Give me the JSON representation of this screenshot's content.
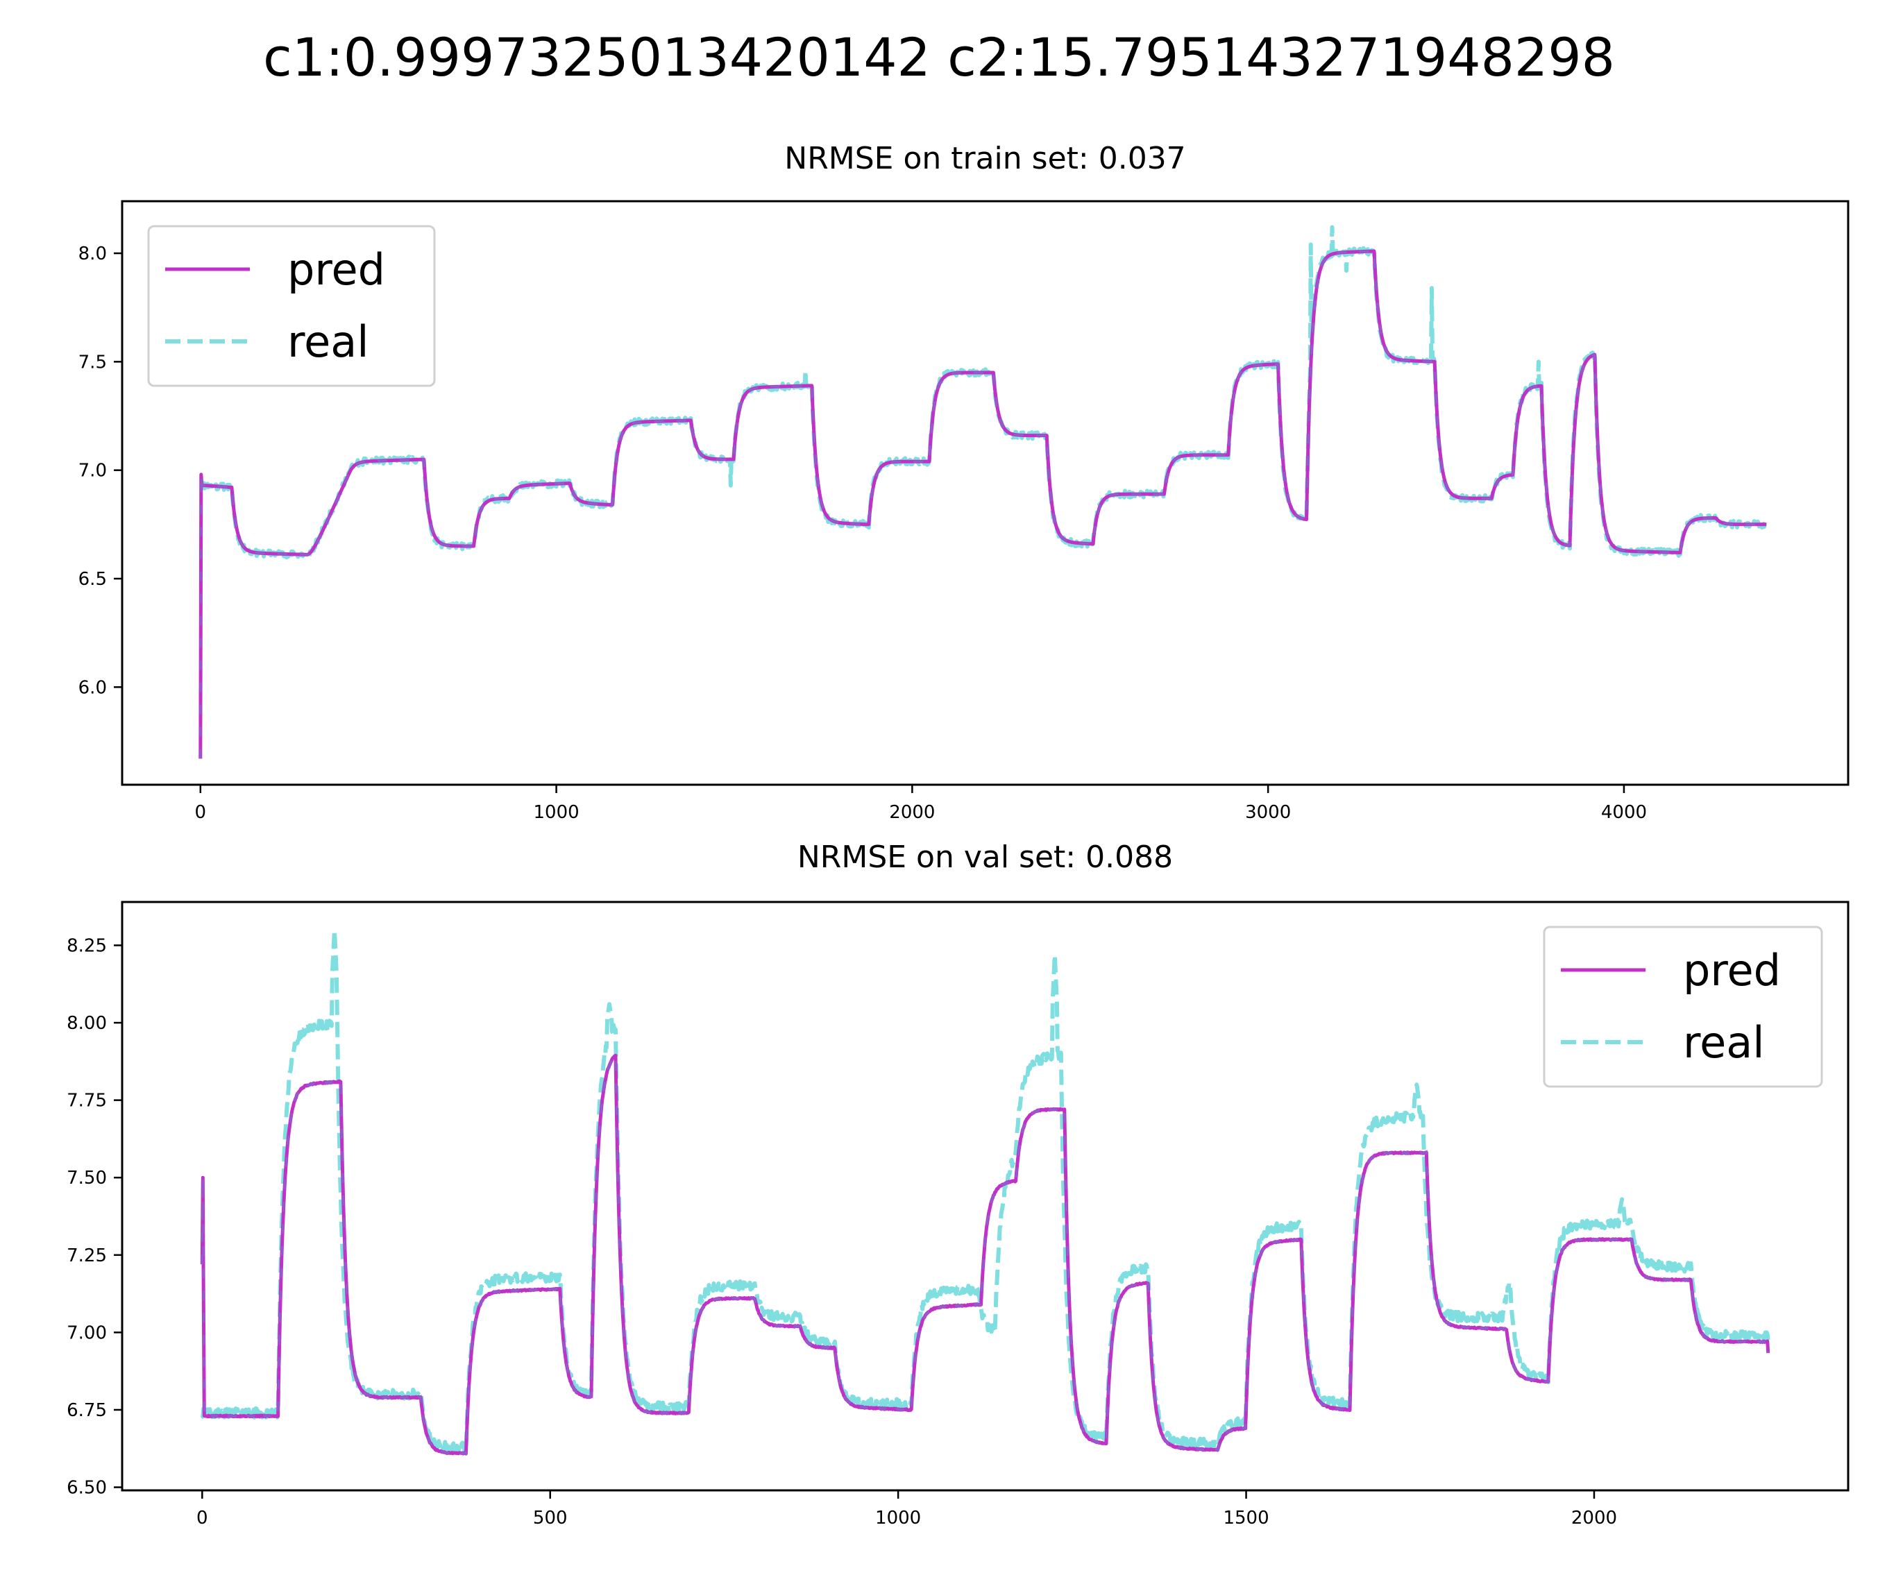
{
  "figure": {
    "suptitle": "c1:0.9997325013420142 c2:15.795143271948298",
    "colors": {
      "pred": "#c031c8",
      "real": "#7fdedf",
      "overlap": "#6a7fcf"
    }
  },
  "chart_data": [
    {
      "type": "line",
      "title": "NRMSE on train set: 0.037",
      "xlabel": "",
      "ylabel": "",
      "xlim": [
        -220,
        4630
      ],
      "ylim": [
        5.55,
        8.24
      ],
      "xticks": [
        0,
        1000,
        2000,
        3000,
        4000
      ],
      "yticks": [
        6.0,
        6.5,
        7.0,
        7.5,
        8.0
      ],
      "ytick_labels": [
        "6.0",
        "6.5",
        "7.0",
        "7.5",
        "8.0"
      ],
      "legend": {
        "position": "upper-left",
        "entries": [
          "pred",
          "real"
        ]
      },
      "grid": false,
      "steps": [
        [
          0,
          6.93
        ],
        [
          80,
          6.92
        ],
        [
          90,
          6.62
        ],
        [
          300,
          6.61
        ],
        [
          420,
          7.04
        ],
        [
          620,
          7.05
        ],
        [
          630,
          6.65
        ],
        [
          760,
          6.65
        ],
        [
          770,
          6.87
        ],
        [
          860,
          6.87
        ],
        [
          870,
          6.93
        ],
        [
          1030,
          6.94
        ],
        [
          1040,
          6.85
        ],
        [
          1140,
          6.84
        ],
        [
          1160,
          7.22
        ],
        [
          1370,
          7.23
        ],
        [
          1380,
          7.05
        ],
        [
          1480,
          7.05
        ],
        [
          1500,
          7.38
        ],
        [
          1710,
          7.39
        ],
        [
          1720,
          6.76
        ],
        [
          1860,
          6.75
        ],
        [
          1880,
          7.04
        ],
        [
          2030,
          7.04
        ],
        [
          2050,
          7.45
        ],
        [
          2210,
          7.45
        ],
        [
          2230,
          7.16
        ],
        [
          2370,
          7.16
        ],
        [
          2380,
          6.67
        ],
        [
          2490,
          6.66
        ],
        [
          2510,
          6.89
        ],
        [
          2690,
          6.89
        ],
        [
          2710,
          7.07
        ],
        [
          2870,
          7.07
        ],
        [
          2890,
          7.48
        ],
        [
          3020,
          7.49
        ],
        [
          3030,
          6.78
        ],
        [
          3090,
          6.77
        ],
        [
          3110,
          8.0
        ],
        [
          3290,
          8.01
        ],
        [
          3300,
          7.51
        ],
        [
          3460,
          7.5
        ],
        [
          3470,
          6.87
        ],
        [
          3610,
          6.87
        ],
        [
          3630,
          6.98
        ],
        [
          3670,
          6.98
        ],
        [
          3690,
          7.39
        ],
        [
          3760,
          7.39
        ],
        [
          3770,
          6.65
        ],
        [
          3830,
          6.65
        ],
        [
          3850,
          7.53
        ],
        [
          3910,
          7.54
        ],
        [
          3920,
          6.63
        ],
        [
          4140,
          6.62
        ],
        [
          4160,
          6.78
        ],
        [
          4240,
          6.78
        ],
        [
          4260,
          6.75
        ],
        [
          4400,
          6.75
        ]
      ],
      "series": [
        {
          "name": "pred",
          "style": "solid"
        },
        {
          "name": "real",
          "style": "dashed"
        }
      ]
    },
    {
      "type": "line",
      "title": "NRMSE on val set: 0.088",
      "xlabel": "",
      "ylabel": "",
      "xlim": [
        -115,
        2365
      ],
      "ylim": [
        6.49,
        8.39
      ],
      "xticks": [
        0,
        500,
        1000,
        1500,
        2000
      ],
      "yticks": [
        6.5,
        6.75,
        7.0,
        7.25,
        7.5,
        7.75,
        8.0,
        8.25
      ],
      "ytick_labels": [
        "6.50",
        "6.75",
        "7.00",
        "7.25",
        "7.50",
        "7.75",
        "8.00",
        "8.25"
      ],
      "legend": {
        "position": "upper-right",
        "entries": [
          "pred",
          "real"
        ]
      },
      "grid": false,
      "pred_steps": [
        [
          0,
          6.73
        ],
        [
          105,
          6.73
        ],
        [
          110,
          7.8
        ],
        [
          195,
          7.81
        ],
        [
          200,
          6.79
        ],
        [
          310,
          6.79
        ],
        [
          315,
          6.61
        ],
        [
          370,
          6.61
        ],
        [
          380,
          7.13
        ],
        [
          505,
          7.14
        ],
        [
          515,
          6.79
        ],
        [
          555,
          6.79
        ],
        [
          560,
          7.9
        ],
        [
          590,
          7.91
        ],
        [
          595,
          6.74
        ],
        [
          690,
          6.74
        ],
        [
          700,
          7.11
        ],
        [
          790,
          7.11
        ],
        [
          795,
          7.02
        ],
        [
          855,
          7.02
        ],
        [
          860,
          6.95
        ],
        [
          905,
          6.95
        ],
        [
          910,
          6.76
        ],
        [
          1010,
          6.75
        ],
        [
          1020,
          7.08
        ],
        [
          1110,
          7.09
        ],
        [
          1120,
          7.48
        ],
        [
          1160,
          7.49
        ],
        [
          1170,
          7.72
        ],
        [
          1230,
          7.72
        ],
        [
          1240,
          6.65
        ],
        [
          1290,
          6.64
        ],
        [
          1300,
          7.15
        ],
        [
          1350,
          7.16
        ],
        [
          1360,
          6.63
        ],
        [
          1450,
          6.62
        ],
        [
          1460,
          6.69
        ],
        [
          1490,
          6.69
        ],
        [
          1500,
          7.29
        ],
        [
          1575,
          7.3
        ],
        [
          1580,
          6.76
        ],
        [
          1640,
          6.75
        ],
        [
          1650,
          7.58
        ],
        [
          1750,
          7.58
        ],
        [
          1760,
          7.02
        ],
        [
          1870,
          7.01
        ],
        [
          1875,
          6.85
        ],
        [
          1930,
          6.84
        ],
        [
          1935,
          7.3
        ],
        [
          2040,
          7.3
        ],
        [
          2055,
          7.17
        ],
        [
          2130,
          7.17
        ],
        [
          2140,
          6.97
        ],
        [
          2230,
          6.97
        ],
        [
          2250,
          6.67
        ]
      ],
      "real_steps": [
        [
          0,
          6.74
        ],
        [
          105,
          6.74
        ],
        [
          110,
          7.98
        ],
        [
          185,
          8.0
        ],
        [
          195,
          6.8
        ],
        [
          310,
          6.8
        ],
        [
          315,
          6.63
        ],
        [
          370,
          6.63
        ],
        [
          380,
          7.17
        ],
        [
          505,
          7.18
        ],
        [
          515,
          6.8
        ],
        [
          555,
          6.8
        ],
        [
          560,
          8.0
        ],
        [
          590,
          8.0
        ],
        [
          595,
          6.76
        ],
        [
          690,
          6.76
        ],
        [
          700,
          7.15
        ],
        [
          790,
          7.15
        ],
        [
          795,
          7.05
        ],
        [
          855,
          7.05
        ],
        [
          860,
          6.97
        ],
        [
          905,
          6.96
        ],
        [
          910,
          6.77
        ],
        [
          1010,
          6.77
        ],
        [
          1020,
          7.13
        ],
        [
          1110,
          7.14
        ],
        [
          1115,
          7.0
        ],
        [
          1140,
          7.55
        ],
        [
          1160,
          7.6
        ],
        [
          1170,
          7.87
        ],
        [
          1225,
          7.9
        ],
        [
          1235,
          6.68
        ],
        [
          1290,
          6.66
        ],
        [
          1300,
          7.2
        ],
        [
          1350,
          7.21
        ],
        [
          1360,
          6.65
        ],
        [
          1450,
          6.64
        ],
        [
          1460,
          6.71
        ],
        [
          1490,
          6.71
        ],
        [
          1500,
          7.33
        ],
        [
          1575,
          7.35
        ],
        [
          1580,
          6.78
        ],
        [
          1640,
          6.77
        ],
        [
          1650,
          7.68
        ],
        [
          1740,
          7.7
        ],
        [
          1755,
          7.05
        ],
        [
          1860,
          7.05
        ],
        [
          1870,
          7.2
        ],
        [
          1880,
          6.86
        ],
        [
          1930,
          6.85
        ],
        [
          1935,
          7.35
        ],
        [
          2040,
          7.35
        ],
        [
          2055,
          7.22
        ],
        [
          2130,
          7.21
        ],
        [
          2140,
          6.99
        ],
        [
          2230,
          6.99
        ],
        [
          2250,
          6.69
        ]
      ],
      "spikes": [
        [
          190,
          8.3
        ],
        [
          585,
          8.06
        ],
        [
          1225,
          8.22
        ],
        [
          1745,
          7.8
        ],
        [
          2040,
          7.43
        ]
      ],
      "series": [
        {
          "name": "pred",
          "style": "solid"
        },
        {
          "name": "real",
          "style": "dashed"
        }
      ]
    }
  ]
}
